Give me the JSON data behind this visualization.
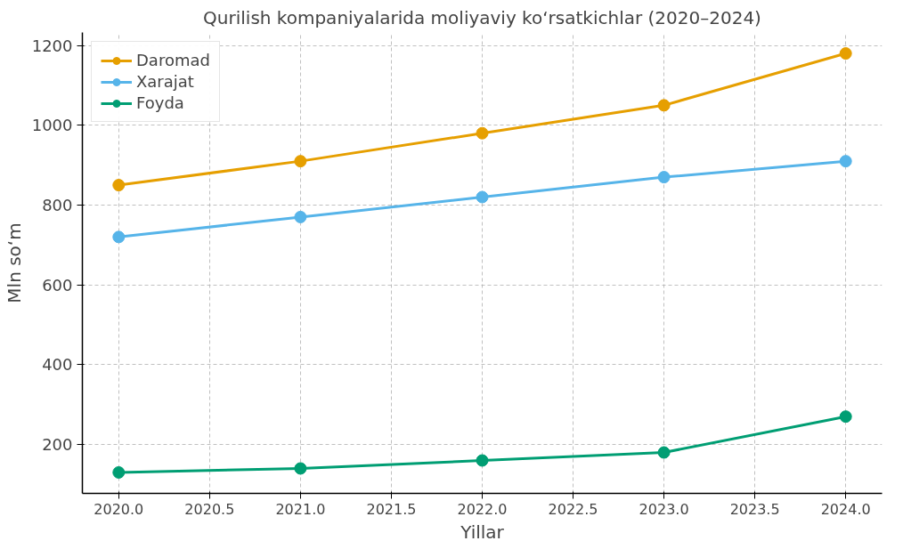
{
  "chart_data": {
    "type": "line",
    "title": "Qurilish kompaniyalarida moliyaviy ko‘rsatkichlar (2020–2024)",
    "xlabel": "Yillar",
    "ylabel": "Mln so‘m",
    "x": [
      2020,
      2021,
      2022,
      2023,
      2024
    ],
    "series": [
      {
        "name": "Daromad",
        "color": "#e69f00",
        "values": [
          850,
          910,
          980,
          1050,
          1180
        ]
      },
      {
        "name": "Xarajat",
        "color": "#56b4e9",
        "values": [
          720,
          770,
          820,
          870,
          910
        ]
      },
      {
        "name": "Foyda",
        "color": "#009e73",
        "values": [
          130,
          140,
          160,
          180,
          270
        ]
      }
    ],
    "xlim": [
      2019.8,
      2024.2
    ],
    "xticks": [
      {
        "value": 2020,
        "label": "2020.0"
      },
      {
        "value": 2020.5,
        "label": "2020.5"
      },
      {
        "value": 2021,
        "label": "2021.0"
      },
      {
        "value": 2021.5,
        "label": "2021.5"
      },
      {
        "value": 2022,
        "label": "2022.0"
      },
      {
        "value": 2022.5,
        "label": "2022.5"
      },
      {
        "value": 2023,
        "label": "2023.0"
      },
      {
        "value": 2023.5,
        "label": "2023.5"
      },
      {
        "value": 2024,
        "label": "2024.0"
      }
    ],
    "ylim": [
      77.5,
      1232.5
    ],
    "yticks": [
      200,
      400,
      600,
      800,
      1000,
      1200
    ],
    "grid": true,
    "legend": "top left",
    "marker": "circle",
    "line_style": "solid"
  }
}
